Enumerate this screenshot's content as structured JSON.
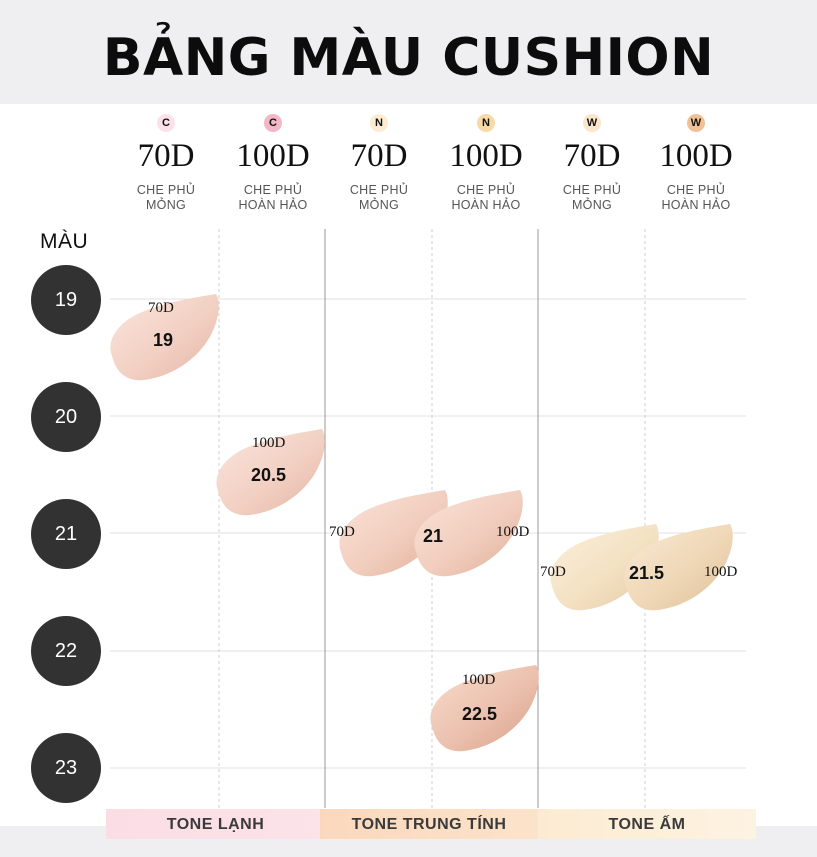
{
  "title": "BẢNG MÀU CUSHION",
  "colors": {
    "cool_badge_light": "#fbe1ea",
    "cool_badge_dark": "#f3b7c7",
    "neutral_badge_light": "#fbecd2",
    "neutral_badge_dark": "#f8d9a8",
    "warm_badge_light": "#fbe5cc",
    "warm_badge_dark": "#f0c195",
    "tone_cool_bg": "#fbdfe5",
    "tone_neutral_bg": "#fbdcc3",
    "tone_warm_bg": "#fcefd9"
  },
  "columns": [
    {
      "badge": "C",
      "level": "70D",
      "desc1": "CHE PHỦ",
      "desc2": "MỎNG"
    },
    {
      "badge": "C",
      "level": "100D",
      "desc1": "CHE PHỦ",
      "desc2": "HOÀN HẢO"
    },
    {
      "badge": "N",
      "level": "70D",
      "desc1": "CHE PHỦ",
      "desc2": "MỎNG"
    },
    {
      "badge": "N",
      "level": "100D",
      "desc1": "CHE PHỦ",
      "desc2": "HOÀN HẢO"
    },
    {
      "badge": "W",
      "level": "70D",
      "desc1": "CHE PHỦ",
      "desc2": "MỎNG"
    },
    {
      "badge": "W",
      "level": "100D",
      "desc1": "CHE PHỦ",
      "desc2": "HOÀN HẢO"
    }
  ],
  "row_header": "MÀU",
  "rows": [
    "19",
    "20",
    "21",
    "22",
    "23"
  ],
  "swatches": [
    {
      "shade": "19",
      "labels": [
        "70D"
      ]
    },
    {
      "shade": "20.5",
      "labels": [
        "100D"
      ]
    },
    {
      "shade": "21",
      "labels": [
        "70D",
        "100D"
      ]
    },
    {
      "shade": "21.5",
      "labels": [
        "70D",
        "100D"
      ]
    },
    {
      "shade": "22.5",
      "labels": [
        "100D"
      ]
    }
  ],
  "tones": [
    "TONE LẠNH",
    "TONE TRUNG TÍNH",
    "TONE ẤM"
  ]
}
